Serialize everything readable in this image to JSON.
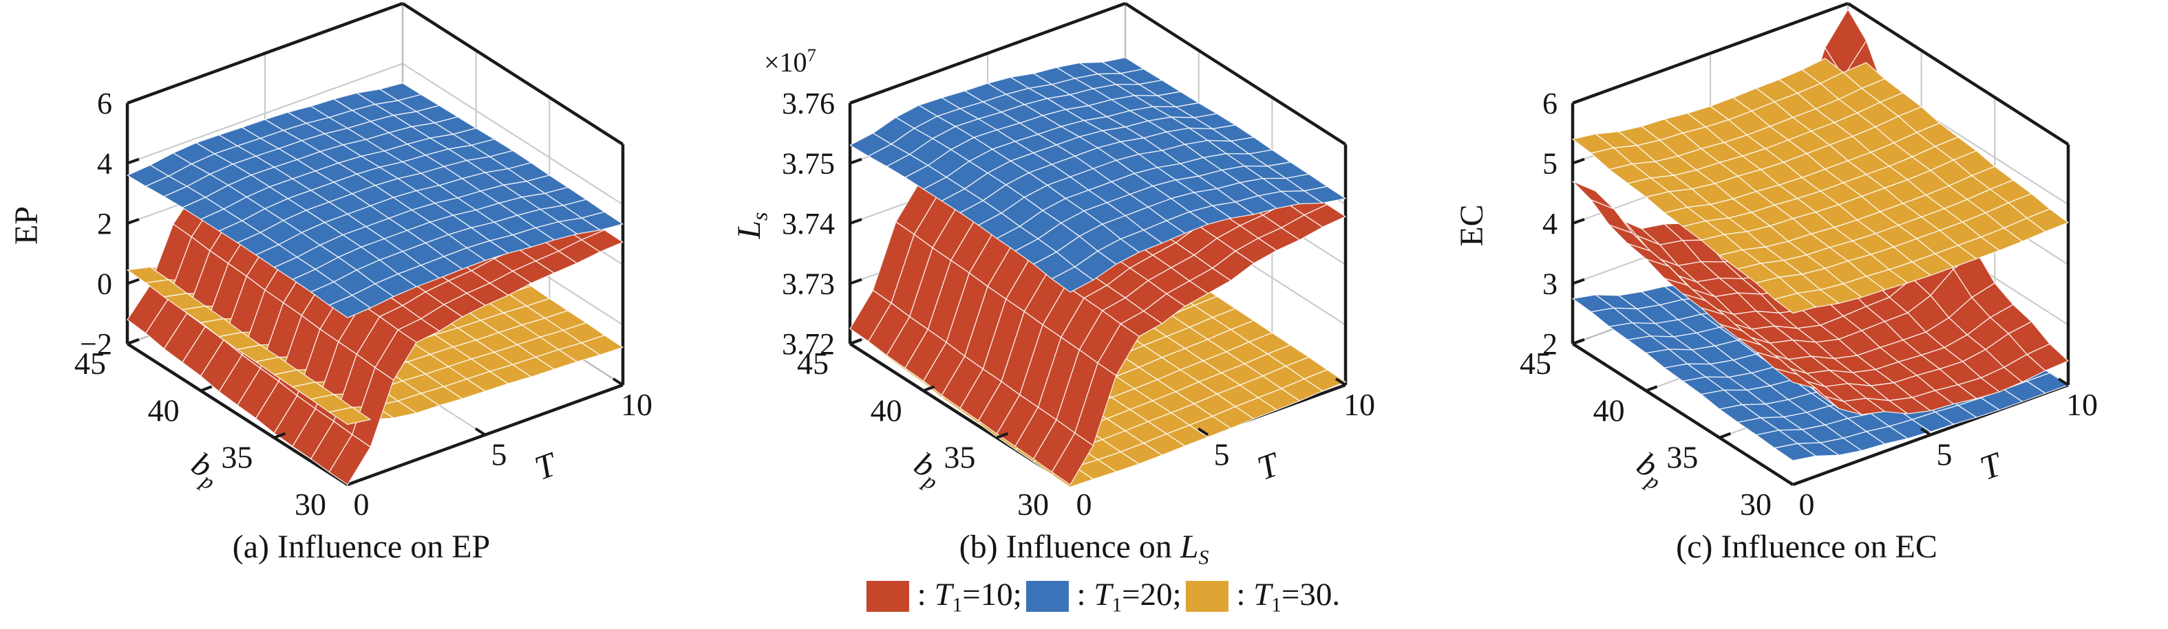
{
  "legend": {
    "items": [
      {
        "color": "#C5462A",
        "parts": [
          {
            "t": " : "
          },
          {
            "t": "T",
            "i": true
          },
          {
            "t": "1",
            "sub": true
          },
          {
            "t": "=10;"
          }
        ]
      },
      {
        "color": "#3B73B8",
        "parts": [
          {
            "t": " : "
          },
          {
            "t": "T",
            "i": true
          },
          {
            "t": "1",
            "sub": true
          },
          {
            "t": "=20;"
          }
        ]
      },
      {
        "color": "#DFA434",
        "parts": [
          {
            "t": " : "
          },
          {
            "t": "T",
            "i": true
          },
          {
            "t": "1",
            "sub": true
          },
          {
            "t": "=30."
          }
        ]
      }
    ]
  },
  "chart_data": [
    {
      "id": "a",
      "type": "surface3d",
      "caption_parts": [
        {
          "t": "(a) Influence on EP"
        }
      ],
      "axes": {
        "x": {
          "label_parts": [
            {
              "t": "b",
              "i": true
            },
            {
              "t": "p",
              "sub": true,
              "i": true
            }
          ],
          "min": 30,
          "max": 45,
          "ticks": [
            30,
            35,
            40,
            45
          ],
          "tick_labels": [
            "30",
            "35",
            "40",
            "45"
          ]
        },
        "y": {
          "label_parts": [
            {
              "t": "T",
              "i": true
            }
          ],
          "min": 0,
          "max": 10,
          "ticks": [
            0,
            5,
            10
          ],
          "tick_labels": [
            "0",
            "5",
            "10"
          ]
        },
        "z": {
          "label_parts": [
            {
              "t": "EP"
            }
          ],
          "min": -2,
          "max": 6,
          "ticks": [
            -2,
            0,
            2,
            4,
            6
          ],
          "tick_labels": [
            "−2",
            "0",
            "2",
            "4",
            "6"
          ],
          "exp_parts": null
        }
      },
      "series": [
        {
          "name": "T1=10",
          "color": "#C5462A",
          "b": [
            30,
            33.75,
            37.5,
            41.25,
            45
          ],
          "T": [
            0,
            2.5,
            5,
            7.5,
            10
          ],
          "z": [
            [
              -2.0,
              1.9,
              2.3,
              2.55,
              2.75
            ],
            [
              -1.9,
              2.0,
              2.35,
              2.6,
              2.8
            ],
            [
              -1.7,
              2.1,
              2.4,
              2.65,
              2.85
            ],
            [
              -1.45,
              2.2,
              2.45,
              2.7,
              2.88
            ],
            [
              -1.2,
              2.3,
              2.5,
              2.72,
              2.9
            ]
          ]
        },
        {
          "name": "T1=20",
          "color": "#3B73B8",
          "b": [
            30,
            33.75,
            37.5,
            41.25,
            45
          ],
          "T": [
            0,
            2.5,
            5,
            7.5,
            10
          ],
          "z": [
            [
              3.55,
              3.75,
              3.8,
              3.65,
              3.35
            ],
            [
              3.65,
              3.9,
              3.9,
              3.7,
              3.4
            ],
            [
              3.7,
              3.95,
              3.95,
              3.75,
              3.45
            ],
            [
              3.7,
              3.95,
              3.9,
              3.7,
              3.4
            ],
            [
              3.6,
              3.85,
              3.8,
              3.65,
              3.35
            ]
          ]
        },
        {
          "name": "T1=30",
          "color": "#DFA434",
          "b": [
            30,
            33.75,
            37.5,
            41.25,
            45
          ],
          "T": [
            0,
            2.5,
            5,
            7.5,
            10
          ],
          "z": [
            [
              0.0,
              -0.45,
              -0.55,
              -0.65,
              -0.75
            ],
            [
              0.08,
              -0.4,
              -0.5,
              -0.6,
              -0.7
            ],
            [
              0.15,
              -0.35,
              -0.45,
              -0.55,
              -0.65
            ],
            [
              0.3,
              -0.3,
              -0.4,
              -0.5,
              -0.6
            ],
            [
              0.45,
              -0.25,
              -0.35,
              -0.45,
              -0.55
            ]
          ]
        }
      ]
    },
    {
      "id": "b",
      "type": "surface3d",
      "caption_parts": [
        {
          "t": "(b) Influence on "
        },
        {
          "t": "L",
          "i": true
        },
        {
          "t": "S",
          "sub": true,
          "i": true
        }
      ],
      "axes": {
        "x": {
          "label_parts": [
            {
              "t": "b",
              "i": true
            },
            {
              "t": "p",
              "sub": true,
              "i": true
            }
          ],
          "min": 30,
          "max": 45,
          "ticks": [
            30,
            35,
            40,
            45
          ],
          "tick_labels": [
            "30",
            "35",
            "40",
            "45"
          ]
        },
        "y": {
          "label_parts": [
            {
              "t": "T",
              "i": true
            }
          ],
          "min": 0,
          "max": 10,
          "ticks": [
            0,
            5,
            10
          ],
          "tick_labels": [
            "0",
            "5",
            "10"
          ]
        },
        "z": {
          "label_parts": [
            {
              "t": "L",
              "i": true
            },
            {
              "t": "s",
              "sub": true,
              "i": true
            }
          ],
          "min": 3.72,
          "max": 3.76,
          "ticks": [
            3.72,
            3.73,
            3.74,
            3.75,
            3.76
          ],
          "tick_labels": [
            "3.72",
            "3.73",
            "3.74",
            "3.75",
            "3.76"
          ],
          "exp_parts": [
            {
              "t": "×10"
            },
            {
              "t": "7",
              "sup": true
            }
          ]
        }
      },
      "series": [
        {
          "name": "T1=10",
          "color": "#C5462A",
          "b": [
            30,
            33.75,
            37.5,
            41.25,
            45
          ],
          "T": [
            0,
            2.5,
            5,
            7.5,
            10
          ],
          "z": [
            [
              3.72,
              3.7405,
              3.7435,
              3.7465,
              3.748
            ],
            [
              3.7205,
              3.741,
              3.744,
              3.7468,
              3.7482
            ],
            [
              3.721,
              3.7415,
              3.7445,
              3.747,
              3.7484
            ],
            [
              3.7218,
              3.742,
              3.745,
              3.7472,
              3.7486
            ],
            [
              3.7225,
              3.7425,
              3.7455,
              3.7475,
              3.7488
            ]
          ]
        },
        {
          "name": "T1=20",
          "color": "#3B73B8",
          "b": [
            30,
            33.75,
            37.5,
            41.25,
            45
          ],
          "T": [
            0,
            2.5,
            5,
            7.5,
            10
          ],
          "z": [
            [
              3.752,
              3.7545,
              3.755,
              3.7535,
              3.751
            ],
            [
              3.753,
              3.7555,
              3.7555,
              3.754,
              3.7512
            ],
            [
              3.7535,
              3.756,
              3.756,
              3.7545,
              3.7515
            ],
            [
              3.7535,
              3.756,
              3.7555,
              3.754,
              3.7512
            ],
            [
              3.753,
              3.7555,
              3.755,
              3.7535,
              3.751
            ]
          ]
        },
        {
          "name": "T1=30",
          "color": "#DFA434",
          "b": [
            30,
            33.75,
            37.5,
            41.25,
            45
          ],
          "T": [
            0,
            2.5,
            5,
            7.5,
            10
          ],
          "z": [
            [
              3.7196,
              3.7193,
              3.7196,
              3.72,
              3.7205
            ],
            [
              3.72,
              3.7195,
              3.7198,
              3.7203,
              3.7208
            ],
            [
              3.7206,
              3.7198,
              3.72,
              3.7205,
              3.721
            ],
            [
              3.7215,
              3.7202,
              3.7203,
              3.7208,
              3.7212
            ],
            [
              3.7225,
              3.7206,
              3.7206,
              3.721,
              3.7215
            ]
          ]
        }
      ]
    },
    {
      "id": "c",
      "type": "surface3d",
      "caption_parts": [
        {
          "t": "(c) Influence on EC"
        }
      ],
      "axes": {
        "x": {
          "label_parts": [
            {
              "t": "b",
              "i": true
            },
            {
              "t": "p",
              "sub": true,
              "i": true
            }
          ],
          "min": 30,
          "max": 45,
          "ticks": [
            30,
            35,
            40,
            45
          ],
          "tick_labels": [
            "30",
            "35",
            "40",
            "45"
          ]
        },
        "y": {
          "label_parts": [
            {
              "t": "T",
              "i": true
            }
          ],
          "min": 0,
          "max": 10,
          "ticks": [
            0,
            5,
            10
          ],
          "tick_labels": [
            "0",
            "5",
            "10"
          ]
        },
        "z": {
          "label_parts": [
            {
              "t": "EC"
            }
          ],
          "min": 2,
          "max": 6,
          "ticks": [
            2,
            3,
            4,
            5,
            6
          ],
          "tick_labels": [
            "2",
            "3",
            "4",
            "5",
            "6"
          ],
          "exp_parts": null
        }
      },
      "series": [
        {
          "name": "T1=10",
          "color": "#C5462A",
          "b": [
            30,
            33.75,
            37.5,
            41.25,
            45
          ],
          "T": [
            0,
            2.5,
            5,
            7.5,
            10
          ],
          "z": [
            [
              3.7,
              2.75,
              2.4,
              2.3,
              2.4
            ],
            [
              3.85,
              2.85,
              2.5,
              2.45,
              2.75
            ],
            [
              4.0,
              3.0,
              2.65,
              2.7,
              3.4
            ],
            [
              4.25,
              3.2,
              2.9,
              3.2,
              4.6
            ],
            [
              4.7,
              3.5,
              3.25,
              3.9,
              5.9
            ]
          ]
        },
        {
          "name": "T1=20",
          "color": "#3B73B8",
          "b": [
            30,
            33.75,
            37.5,
            41.25,
            45
          ],
          "T": [
            0,
            2.5,
            5,
            7.5,
            10
          ],
          "z": [
            [
              2.4,
              2.15,
              2.05,
              2.0,
              2.0
            ],
            [
              2.45,
              2.2,
              2.08,
              2.02,
              2.02
            ],
            [
              2.55,
              2.27,
              2.12,
              2.05,
              2.05
            ],
            [
              2.65,
              2.35,
              2.17,
              2.1,
              2.08
            ],
            [
              2.75,
              2.45,
              2.25,
              2.15,
              2.12
            ]
          ]
        },
        {
          "name": "T1=30",
          "color": "#DFA434",
          "b": [
            30,
            33.75,
            37.5,
            41.25,
            45
          ],
          "T": [
            0,
            2.5,
            5,
            7.5,
            10
          ],
          "z": [
            [
              4.85,
              4.7,
              4.65,
              4.65,
              4.7
            ],
            [
              5.0,
              4.82,
              4.76,
              4.76,
              4.82
            ],
            [
              5.12,
              4.94,
              4.88,
              4.88,
              4.95
            ],
            [
              5.25,
              5.06,
              5.0,
              5.02,
              5.1
            ],
            [
              5.4,
              5.2,
              5.12,
              5.15,
              5.25
            ]
          ]
        }
      ]
    }
  ]
}
